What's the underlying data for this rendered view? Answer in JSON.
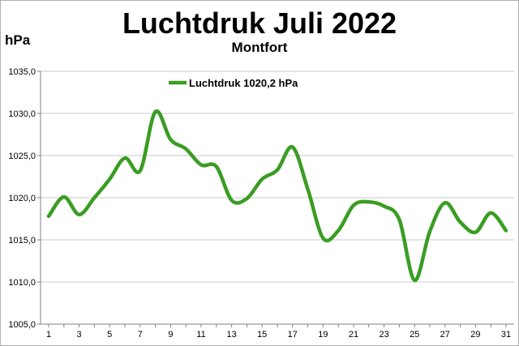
{
  "chart_data": {
    "type": "line",
    "title": "Luchtdruk Juli 2022",
    "subtitle": "Montfort",
    "ylabel": "hPa",
    "xlabel": "",
    "ylim": [
      1005.0,
      1035.0
    ],
    "yticks": [
      "1005,0",
      "1010,0",
      "1015,0",
      "1020,0",
      "1025,0",
      "1030,0",
      "1035,0"
    ],
    "ytick_values": [
      1005,
      1010,
      1015,
      1020,
      1025,
      1030,
      1035
    ],
    "xlim": [
      1,
      31
    ],
    "xticks": [
      "1",
      "3",
      "5",
      "7",
      "9",
      "11",
      "13",
      "15",
      "17",
      "19",
      "21",
      "23",
      "25",
      "27",
      "29",
      "31"
    ],
    "xtick_values": [
      1,
      3,
      5,
      7,
      9,
      11,
      13,
      15,
      17,
      19,
      21,
      23,
      25,
      27,
      29,
      31
    ],
    "grid": "horizontal",
    "legend_position": "top-left",
    "x": [
      1,
      2,
      3,
      4,
      5,
      6,
      7,
      8,
      9,
      10,
      11,
      12,
      13,
      14,
      15,
      16,
      17,
      18,
      19,
      20,
      21,
      22,
      23,
      24,
      25,
      26,
      27,
      28,
      29,
      30,
      31
    ],
    "series": [
      {
        "name": "Luchtdruk 1020,2 hPa",
        "color": "#3a9d23",
        "values": [
          1017.8,
          1020.1,
          1018.0,
          1020.0,
          1022.2,
          1024.7,
          1023.2,
          1030.2,
          1026.9,
          1025.8,
          1023.9,
          1023.7,
          1019.7,
          1019.9,
          1022.2,
          1023.3,
          1026.0,
          1021.0,
          1015.2,
          1016.1,
          1019.1,
          1019.5,
          1019.0,
          1017.4,
          1010.2,
          1016.0,
          1019.4,
          1017.1,
          1015.9,
          1018.2,
          1016.1
        ]
      }
    ]
  }
}
